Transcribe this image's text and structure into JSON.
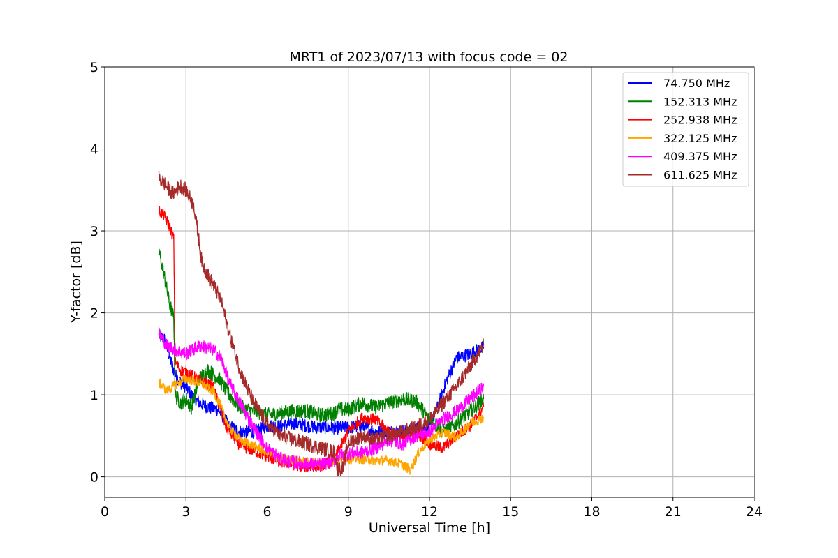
{
  "chart_data": {
    "type": "line",
    "title": "MRT1 of 2023/07/13 with focus code = 02",
    "xlabel": "Universal Time [h]",
    "ylabel": "Y-factor [dB]",
    "xlim": [
      0,
      24
    ],
    "ylim": [
      -0.25,
      5
    ],
    "xticks": [
      "0",
      "3",
      "6",
      "9",
      "12",
      "15",
      "18",
      "21",
      "24"
    ],
    "yticks": [
      "0",
      "1",
      "2",
      "3",
      "4",
      "5"
    ],
    "grid": true,
    "legend_position": "top-right",
    "series": [
      {
        "name": "74.750 MHz",
        "color": "#0000ff",
        "points": [
          [
            2.0,
            1.72
          ],
          [
            2.2,
            1.68
          ],
          [
            2.4,
            1.45
          ],
          [
            2.6,
            1.25
          ],
          [
            2.8,
            1.15
          ],
          [
            3.0,
            1.1
          ],
          [
            3.2,
            1.0
          ],
          [
            3.5,
            0.9
          ],
          [
            3.8,
            0.85
          ],
          [
            4.2,
            0.82
          ],
          [
            4.6,
            0.62
          ],
          [
            5.0,
            0.55
          ],
          [
            5.5,
            0.55
          ],
          [
            6.0,
            0.62
          ],
          [
            6.5,
            0.62
          ],
          [
            7.0,
            0.65
          ],
          [
            7.5,
            0.62
          ],
          [
            8.0,
            0.6
          ],
          [
            8.5,
            0.6
          ],
          [
            8.6,
            0.6
          ],
          [
            9.0,
            0.6
          ],
          [
            9.5,
            0.62
          ],
          [
            10.0,
            0.55
          ],
          [
            10.5,
            0.55
          ],
          [
            11.0,
            0.55
          ],
          [
            11.5,
            0.6
          ],
          [
            12.0,
            0.6
          ],
          [
            12.3,
            0.85
          ],
          [
            12.6,
            1.15
          ],
          [
            13.0,
            1.45
          ],
          [
            13.5,
            1.5
          ],
          [
            14.0,
            1.58
          ]
        ],
        "noise": 0.08
      },
      {
        "name": "152.313 MHz",
        "color": "#008000",
        "points": [
          [
            2.0,
            2.75
          ],
          [
            2.2,
            2.45
          ],
          [
            2.4,
            2.1
          ],
          [
            2.55,
            1.95
          ],
          [
            2.6,
            1.0
          ],
          [
            2.8,
            0.9
          ],
          [
            3.0,
            0.95
          ],
          [
            3.2,
            0.85
          ],
          [
            3.5,
            1.2
          ],
          [
            3.8,
            1.3
          ],
          [
            4.2,
            1.2
          ],
          [
            4.6,
            1.0
          ],
          [
            5.0,
            0.85
          ],
          [
            5.5,
            0.8
          ],
          [
            6.0,
            0.75
          ],
          [
            6.5,
            0.78
          ],
          [
            7.0,
            0.8
          ],
          [
            7.5,
            0.8
          ],
          [
            8.0,
            0.75
          ],
          [
            8.5,
            0.78
          ],
          [
            8.6,
            0.82
          ],
          [
            9.0,
            0.82
          ],
          [
            9.5,
            0.9
          ],
          [
            10.0,
            0.85
          ],
          [
            10.5,
            0.9
          ],
          [
            11.0,
            0.95
          ],
          [
            11.5,
            0.92
          ],
          [
            12.0,
            0.7
          ],
          [
            12.5,
            0.55
          ],
          [
            13.0,
            0.65
          ],
          [
            13.5,
            0.8
          ],
          [
            14.0,
            0.95
          ]
        ],
        "noise": 0.09
      },
      {
        "name": "252.938 MHz",
        "color": "#ff0000",
        "points": [
          [
            2.0,
            3.25
          ],
          [
            2.2,
            3.18
          ],
          [
            2.4,
            3.05
          ],
          [
            2.55,
            2.9
          ],
          [
            2.6,
            1.4
          ],
          [
            2.8,
            1.3
          ],
          [
            3.0,
            1.28
          ],
          [
            3.5,
            1.18
          ],
          [
            4.0,
            1.1
          ],
          [
            4.5,
            0.6
          ],
          [
            5.0,
            0.38
          ],
          [
            5.5,
            0.32
          ],
          [
            6.0,
            0.25
          ],
          [
            6.5,
            0.18
          ],
          [
            7.0,
            0.15
          ],
          [
            7.5,
            0.12
          ],
          [
            8.0,
            0.14
          ],
          [
            8.5,
            0.2
          ],
          [
            8.6,
            0.3
          ],
          [
            9.0,
            0.55
          ],
          [
            9.5,
            0.72
          ],
          [
            10.0,
            0.7
          ],
          [
            10.5,
            0.55
          ],
          [
            11.0,
            0.48
          ],
          [
            11.5,
            0.55
          ],
          [
            12.0,
            0.4
          ],
          [
            12.5,
            0.35
          ],
          [
            13.0,
            0.5
          ],
          [
            13.5,
            0.62
          ],
          [
            14.0,
            0.85
          ]
        ],
        "noise": 0.07
      },
      {
        "name": "322.125 MHz",
        "color": "#ffa500",
        "points": [
          [
            2.0,
            1.15
          ],
          [
            2.3,
            1.05
          ],
          [
            2.6,
            1.12
          ],
          [
            3.0,
            1.2
          ],
          [
            3.5,
            1.15
          ],
          [
            4.0,
            1.05
          ],
          [
            4.3,
            0.85
          ],
          [
            4.6,
            0.6
          ],
          [
            5.0,
            0.45
          ],
          [
            5.5,
            0.38
          ],
          [
            6.0,
            0.3
          ],
          [
            6.5,
            0.22
          ],
          [
            7.0,
            0.2
          ],
          [
            7.5,
            0.18
          ],
          [
            8.0,
            0.18
          ],
          [
            8.5,
            0.2
          ],
          [
            9.0,
            0.22
          ],
          [
            9.5,
            0.22
          ],
          [
            10.0,
            0.2
          ],
          [
            10.5,
            0.2
          ],
          [
            11.0,
            0.15
          ],
          [
            11.3,
            0.08
          ],
          [
            11.6,
            0.3
          ],
          [
            12.0,
            0.45
          ],
          [
            12.5,
            0.55
          ],
          [
            13.0,
            0.48
          ],
          [
            13.5,
            0.65
          ],
          [
            14.0,
            0.72
          ]
        ],
        "noise": 0.06
      },
      {
        "name": "409.375 MHz",
        "color": "#ff00ff",
        "points": [
          [
            2.0,
            1.75
          ],
          [
            2.3,
            1.6
          ],
          [
            2.6,
            1.55
          ],
          [
            3.0,
            1.5
          ],
          [
            3.5,
            1.6
          ],
          [
            4.0,
            1.55
          ],
          [
            4.3,
            1.45
          ],
          [
            4.6,
            1.15
          ],
          [
            5.0,
            0.9
          ],
          [
            5.5,
            0.6
          ],
          [
            6.0,
            0.35
          ],
          [
            6.5,
            0.22
          ],
          [
            7.0,
            0.18
          ],
          [
            7.5,
            0.15
          ],
          [
            8.0,
            0.15
          ],
          [
            8.5,
            0.2
          ],
          [
            8.6,
            0.25
          ],
          [
            9.0,
            0.28
          ],
          [
            9.5,
            0.3
          ],
          [
            10.0,
            0.35
          ],
          [
            10.5,
            0.45
          ],
          [
            11.0,
            0.4
          ],
          [
            11.5,
            0.5
          ],
          [
            12.0,
            0.55
          ],
          [
            12.5,
            0.7
          ],
          [
            13.0,
            0.8
          ],
          [
            13.5,
            0.95
          ],
          [
            14.0,
            1.1
          ]
        ],
        "noise": 0.08
      },
      {
        "name": "611.625 MHz",
        "color": "#a52a2a",
        "points": [
          [
            2.0,
            3.65
          ],
          [
            2.2,
            3.58
          ],
          [
            2.5,
            3.45
          ],
          [
            2.8,
            3.55
          ],
          [
            3.0,
            3.5
          ],
          [
            3.3,
            3.3
          ],
          [
            3.6,
            2.6
          ],
          [
            4.0,
            2.35
          ],
          [
            4.3,
            2.15
          ],
          [
            4.6,
            1.75
          ],
          [
            5.0,
            1.3
          ],
          [
            5.3,
            1.05
          ],
          [
            5.6,
            0.85
          ],
          [
            6.0,
            0.65
          ],
          [
            6.5,
            0.5
          ],
          [
            7.0,
            0.45
          ],
          [
            7.5,
            0.4
          ],
          [
            8.0,
            0.35
          ],
          [
            8.5,
            0.3
          ],
          [
            8.6,
            0.1
          ],
          [
            8.8,
            0.1
          ],
          [
            9.0,
            0.42
          ],
          [
            9.5,
            0.5
          ],
          [
            10.0,
            0.45
          ],
          [
            10.5,
            0.5
          ],
          [
            11.0,
            0.55
          ],
          [
            11.5,
            0.6
          ],
          [
            12.0,
            0.7
          ],
          [
            12.5,
            0.9
          ],
          [
            13.0,
            1.1
          ],
          [
            13.5,
            1.35
          ],
          [
            14.0,
            1.6
          ]
        ],
        "noise": 0.09
      }
    ],
    "legend_labels": [
      " 74.750 MHz",
      "152.313 MHz",
      "252.938 MHz",
      "322.125 MHz",
      "409.375 MHz",
      "611.625 MHz"
    ]
  }
}
